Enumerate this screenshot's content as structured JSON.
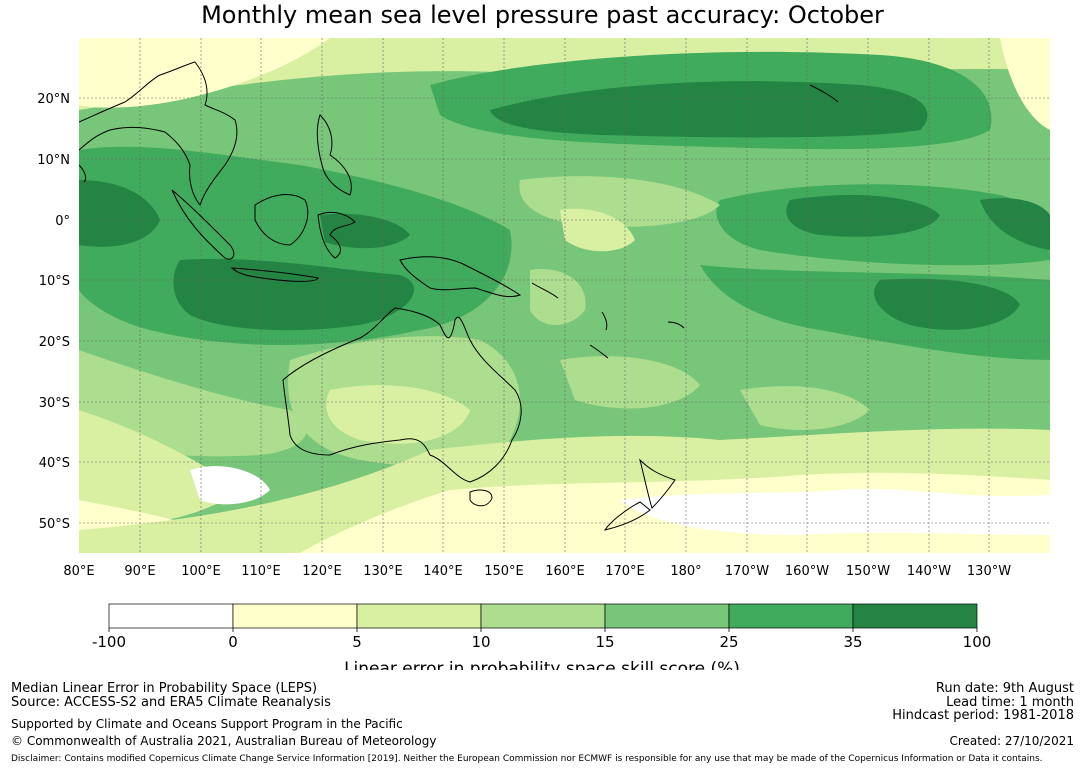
{
  "title": "Monthly mean sea level pressure past accuracy: October",
  "map": {
    "lat_labels": [
      "20°N",
      "10°N",
      "0°",
      "10°S",
      "20°S",
      "30°S",
      "40°S",
      "50°S"
    ],
    "lon_labels": [
      "80°E",
      "90°E",
      "100°E",
      "110°E",
      "120°E",
      "130°E",
      "140°E",
      "150°E",
      "160°E",
      "170°E",
      "180°",
      "170°W",
      "160°W",
      "150°W",
      "140°W",
      "130°W"
    ],
    "lat_range": [
      -55,
      30
    ],
    "lon_range": [
      80,
      240
    ]
  },
  "legend": {
    "ticks": [
      "-100",
      "0",
      "5",
      "10",
      "15",
      "25",
      "35",
      "100"
    ],
    "colors": [
      "#ffffff",
      "#ffffcc",
      "#d9f0a3",
      "#addd8e",
      "#78c679",
      "#41ab5d",
      "#238443"
    ],
    "label": "Linear error in probability space skill score (%)"
  },
  "footer": {
    "method": "Median Linear Error in Probability Space (LEPS)",
    "source": "Source: ACCESS-S2 and ERA5 Climate Reanalysis",
    "support": "Supported by Climate and Oceans Support Program in the Pacific",
    "copyright": "© Commonwealth of Australia 2021, Australian Bureau of Meteorology",
    "run_date": "Run date: 9th August",
    "lead_time": "Lead time: 1 month",
    "hindcast": "Hindcast period: 1981-2018",
    "created": "Created: 27/10/2021",
    "disclaimer": "Disclaimer: Contains modified Copernicus Climate Change Service Information [2019]. Neither the European Commission nor ECMWF is responsible for any use that may be made of the Copernicus Information or Data it contains."
  }
}
